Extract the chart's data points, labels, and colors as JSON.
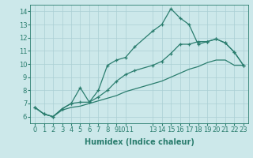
{
  "x": [
    0,
    1,
    2,
    3,
    4,
    5,
    6,
    7,
    8,
    9,
    10,
    11,
    13,
    14,
    15,
    16,
    17,
    18,
    19,
    20,
    21,
    22,
    23
  ],
  "upper_line": [
    6.7,
    6.2,
    6.0,
    6.6,
    7.0,
    8.2,
    7.1,
    8.0,
    9.9,
    10.3,
    10.5,
    11.3,
    12.5,
    13.0,
    14.2,
    13.5,
    13.0,
    11.5,
    11.7,
    11.9,
    11.6,
    10.9,
    9.9
  ],
  "middle_line": [
    6.7,
    6.2,
    6.0,
    6.6,
    7.0,
    7.1,
    7.1,
    7.5,
    8.0,
    8.7,
    9.2,
    9.5,
    9.9,
    10.2,
    10.8,
    11.5,
    11.5,
    11.7,
    11.7,
    11.9,
    11.6,
    10.9,
    9.9
  ],
  "lower_line": [
    6.7,
    6.2,
    6.0,
    6.5,
    6.7,
    6.8,
    7.0,
    7.2,
    7.4,
    7.6,
    7.9,
    8.1,
    8.5,
    8.7,
    9.0,
    9.3,
    9.6,
    9.8,
    10.1,
    10.3,
    10.3,
    9.9,
    9.9
  ],
  "line_color": "#2a7d6e",
  "bg_color": "#cce8ea",
  "grid_color": "#aacfd4",
  "xlabel": "Humidex (Indice chaleur)",
  "ylim": [
    5.5,
    14.5
  ],
  "xlim": [
    -0.5,
    23.5
  ],
  "yticks": [
    6,
    7,
    8,
    9,
    10,
    11,
    12,
    13,
    14
  ]
}
